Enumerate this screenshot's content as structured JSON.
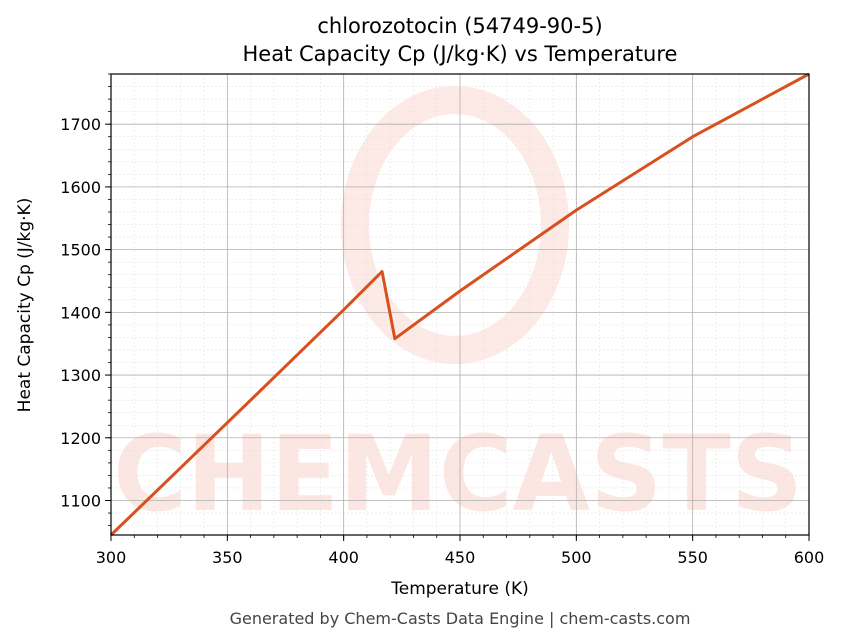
{
  "footer": "Generated by Chem-Casts Data Engine | chem-casts.com",
  "watermark": "CHEMCASTS",
  "colors": {
    "line": "#d9501f",
    "watermark": "#fbd3cc",
    "grid_major": "#b0b0b0",
    "grid_minor": "#e0e0e0",
    "footer": "#444444"
  },
  "chart_data": {
    "type": "line",
    "title_line1": "chlorozotocin (54749-90-5)",
    "title_line2": "Heat Capacity Cp (J/kg·K) vs Temperature",
    "xlabel": "Temperature (K)",
    "ylabel": "Heat Capacity Cp (J/kg·K)",
    "xlim": [
      300,
      600
    ],
    "ylim": [
      1045,
      1780
    ],
    "xticks": [
      300,
      350,
      400,
      450,
      500,
      550,
      600
    ],
    "yticks": [
      1100,
      1200,
      1300,
      1400,
      1500,
      1600,
      1700
    ],
    "grid": true,
    "minor_grid": true,
    "series": [
      {
        "x": [
          300,
          350,
          400,
          416.5,
          422,
          450,
          500,
          550,
          600
        ],
        "y": [
          1045,
          1224,
          1404,
          1465,
          1358,
          1434,
          1563,
          1680,
          1780
        ]
      }
    ]
  }
}
